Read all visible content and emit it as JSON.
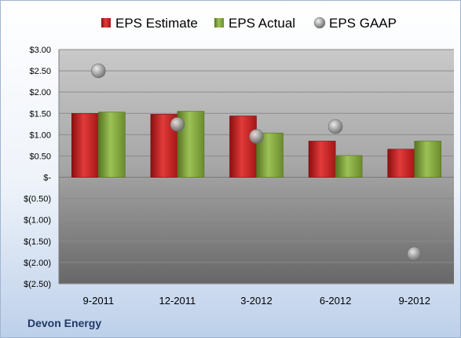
{
  "company": "Devon Energy",
  "chart_data": {
    "type": "bar",
    "categories": [
      "9-2011",
      "12-2011",
      "3-2012",
      "6-2012",
      "9-2012"
    ],
    "series": [
      {
        "name": "EPS Estimate",
        "type": "bar",
        "color": "#d42a2a",
        "values": [
          1.5,
          1.48,
          1.44,
          0.85,
          0.66
        ]
      },
      {
        "name": "EPS Actual",
        "type": "bar",
        "color": "#8cb046",
        "values": [
          1.53,
          1.55,
          1.04,
          0.51,
          0.85
        ]
      },
      {
        "name": "EPS GAAP",
        "type": "scatter",
        "color": "#a8a8a8",
        "values": [
          2.5,
          1.24,
          0.96,
          1.19,
          -1.8
        ]
      }
    ],
    "ylim": [
      -2.5,
      3.0
    ],
    "yticks": [
      3.0,
      2.5,
      2.0,
      1.5,
      1.0,
      0.5,
      0,
      -0.5,
      -1.0,
      -1.5,
      -2.0,
      -2.5
    ],
    "ytick_labels": [
      "$3.00",
      "$2.50",
      "$2.00",
      "$1.50",
      "$1.00",
      "$0.50",
      "$-",
      "$(0.50)",
      "$(1.00)",
      "$(1.50)",
      "$(2.00)",
      "$(2.50)"
    ],
    "legend_position": "top",
    "grid": true
  }
}
